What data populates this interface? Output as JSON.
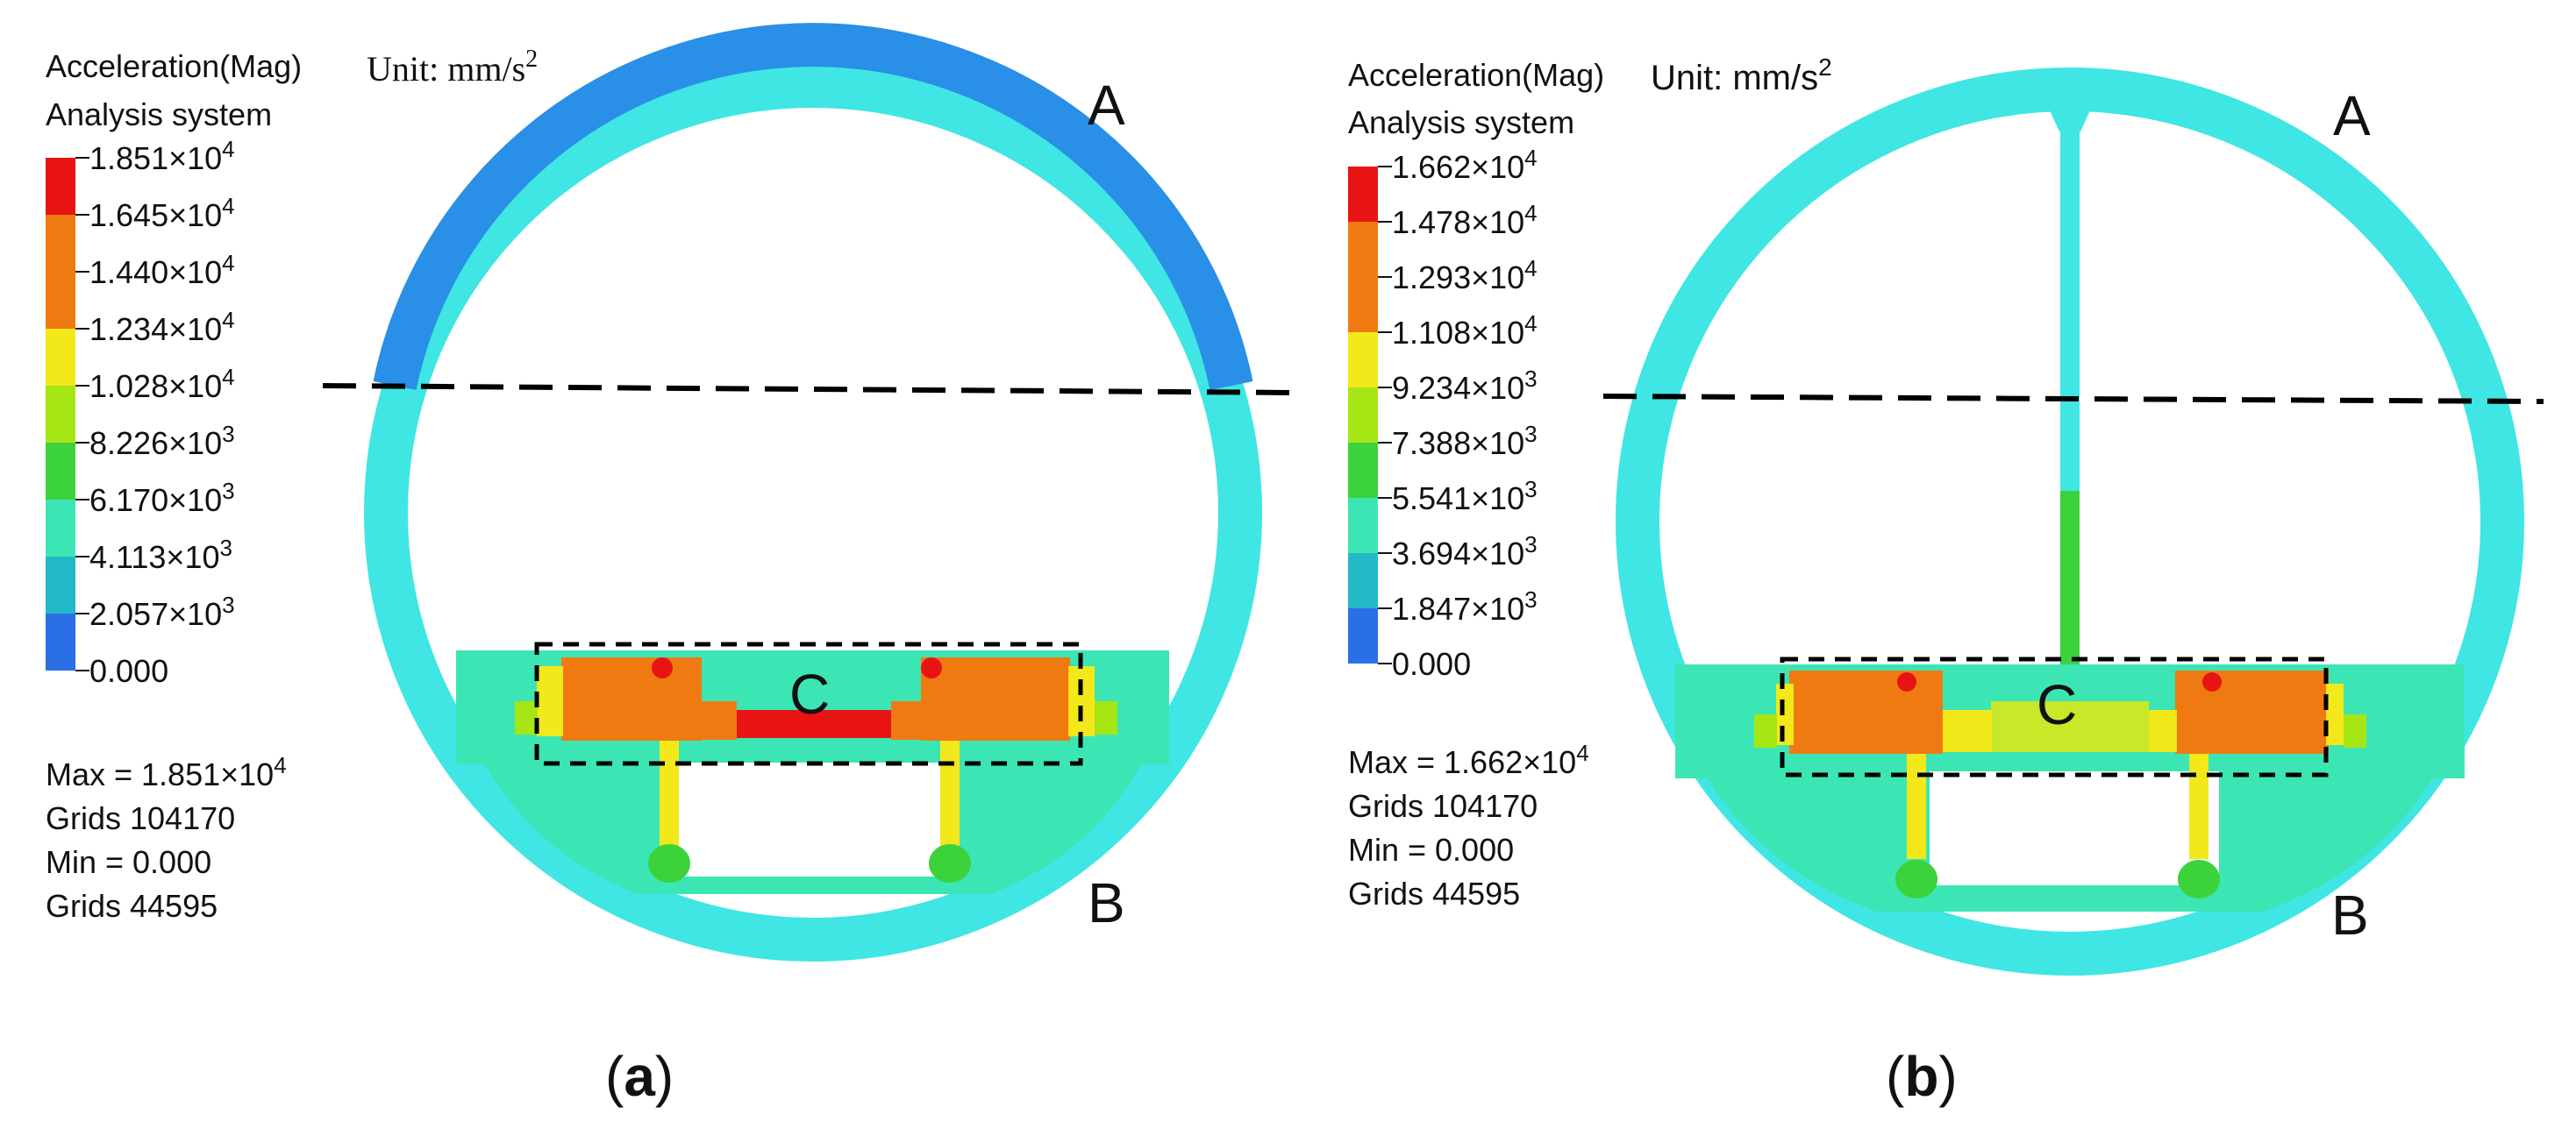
{
  "colors": {
    "red": "#e81414",
    "orange": "#f07a12",
    "yellow": "#f2e81a",
    "yellow_green": "#c8e82a",
    "green": "#3cd23c",
    "cyan": "#3fe6e3",
    "teal_green": "#3ce6b4",
    "blue": "#2a8fe6",
    "dark_blue": "#1414b4"
  },
  "panels": [
    {
      "caption_letter": "a",
      "legend": {
        "title_line1": "Acceleration(Mag)",
        "unit_prefix": "Unit: mm/s",
        "unit_exp": "2",
        "title_line2": "Analysis system",
        "ticks": [
          {
            "mant": "1.851",
            "exp": "4"
          },
          {
            "mant": "1.645",
            "exp": "4"
          },
          {
            "mant": "1.440",
            "exp": "4"
          },
          {
            "mant": "1.234",
            "exp": "4"
          },
          {
            "mant": "1.028",
            "exp": "4"
          },
          {
            "mant": "8.226",
            "exp": "3"
          },
          {
            "mant": "6.170",
            "exp": "3"
          },
          {
            "mant": "4.113",
            "exp": "3"
          },
          {
            "mant": "2.057",
            "exp": "3"
          },
          {
            "mant": "0.000",
            "exp": ""
          }
        ],
        "band_colors": [
          "#e81414",
          "#f07a12",
          "#f07a12",
          "#f2e81a",
          "#a6e614",
          "#3cd23c",
          "#3ce6b4",
          "#23b8c8",
          "#2a6fe6",
          "#1414b4"
        ],
        "max_line": "Max = 1.851",
        "max_exp": "4",
        "grids_max": "Grids 104170",
        "min_line": "Min = 0.000",
        "grids_min": "Grids 44595"
      },
      "labels": {
        "a": "A",
        "b": "B",
        "c": "C"
      }
    },
    {
      "caption_letter": "b",
      "legend": {
        "title_line1": "Acceleration(Mag)",
        "unit_prefix": "Unit: mm/s",
        "unit_exp": "2",
        "title_line2": "Analysis system",
        "ticks": [
          {
            "mant": "1.662",
            "exp": "4"
          },
          {
            "mant": "1.478",
            "exp": "4"
          },
          {
            "mant": "1.293",
            "exp": "4"
          },
          {
            "mant": "1.108",
            "exp": "4"
          },
          {
            "mant": "9.234",
            "exp": "3"
          },
          {
            "mant": "7.388",
            "exp": "3"
          },
          {
            "mant": "5.541",
            "exp": "3"
          },
          {
            "mant": "3.694",
            "exp": "3"
          },
          {
            "mant": "1.847",
            "exp": "3"
          },
          {
            "mant": "0.000",
            "exp": ""
          }
        ],
        "band_colors": [
          "#e81414",
          "#f07a12",
          "#f07a12",
          "#f2e81a",
          "#a6e614",
          "#3cd23c",
          "#3ce6b4",
          "#23b8c8",
          "#2a6fe6",
          "#1414b4"
        ],
        "max_line": "Max = 1.662",
        "max_exp": "4",
        "grids_max": "Grids 104170",
        "min_line": "Min = 0.000",
        "grids_min": "Grids 44595"
      },
      "labels": {
        "a": "A",
        "b": "B",
        "c": "C"
      }
    }
  ],
  "times_symbol": "×10"
}
